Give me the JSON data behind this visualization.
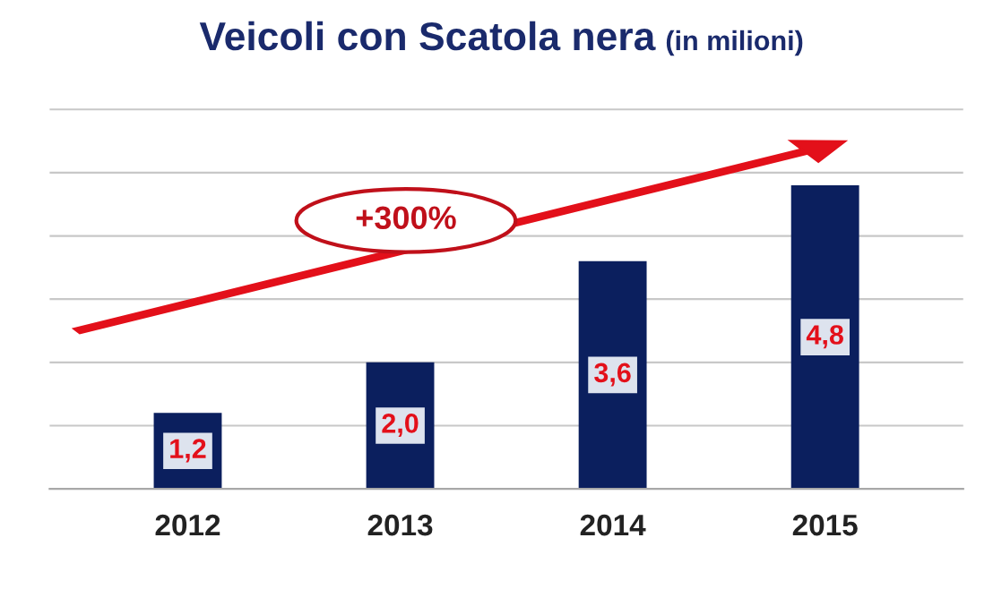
{
  "chart_data": {
    "type": "bar",
    "title": "Veicoli con Scatola nera",
    "subtitle": "(in milioni)",
    "categories": [
      "2012",
      "2013",
      "2014",
      "2015"
    ],
    "series": [
      {
        "color": "#0b1f5e",
        "values": [
          1.2,
          2.0,
          3.6,
          4.8
        ],
        "value_labels": [
          "1,2",
          "2,0",
          "3,6",
          "4,8"
        ]
      }
    ],
    "annotations": [
      "+300%"
    ],
    "grid": "y",
    "tick_labels": "x"
  }
}
